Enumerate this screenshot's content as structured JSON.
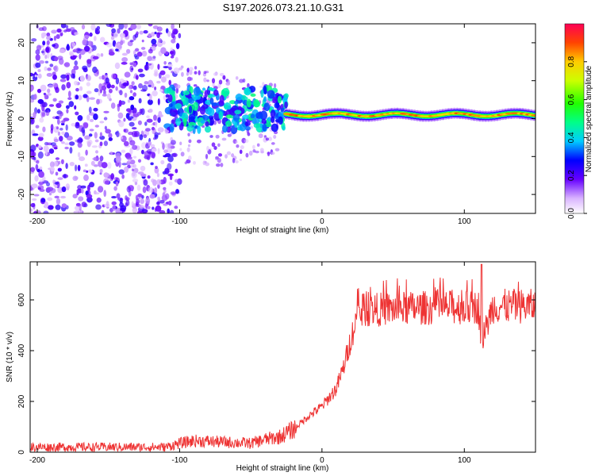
{
  "title": "S197.2026.073.21.10.G31",
  "chart_data": [
    {
      "type": "heatmap",
      "xlabel": "Height of straight line (km)",
      "ylabel": "Frequency (Hz)",
      "xlim": [
        -205,
        150
      ],
      "ylim": [
        -25,
        25
      ],
      "xticks": [
        -200,
        -100,
        0,
        100
      ],
      "yticks": [
        -20,
        -10,
        0,
        10,
        20
      ],
      "regions": [
        {
          "name": "noise",
          "x_range": [
            -205,
            -100
          ],
          "y_range": [
            -25,
            25
          ],
          "amplitude": [
            0.05,
            0.25
          ]
        },
        {
          "name": "scatter",
          "x_range": [
            -100,
            -30
          ],
          "y_range": [
            -15,
            15
          ],
          "amplitude": [
            0.05,
            0.2
          ]
        },
        {
          "name": "ridge-start",
          "x_range": [
            -110,
            -25
          ],
          "y_range": [
            -3,
            8
          ],
          "amplitude": [
            0.2,
            0.5
          ]
        },
        {
          "name": "ridge",
          "x_range": [
            -25,
            150
          ],
          "y_center": 1,
          "amplitude": [
            0.6,
            0.95
          ]
        }
      ],
      "colorbar": {
        "label": "Normalized spectral amplitude",
        "range": [
          0,
          1
        ],
        "ticks": [
          "0.0",
          "0.2",
          "0.4",
          "0.6",
          "0.8"
        ]
      }
    },
    {
      "type": "line",
      "xlabel": "Height of straight line (km)",
      "ylabel": "SNR (10 * v/v)",
      "xlim": [
        -205,
        150
      ],
      "ylim": [
        0,
        750
      ],
      "xticks": [
        -200,
        -100,
        0,
        100
      ],
      "yticks": [
        0,
        200,
        400,
        600
      ],
      "color": "#ee3333",
      "series": [
        {
          "name": "SNR",
          "x": [
            -205,
            -150,
            -110,
            -100,
            -90,
            -70,
            -50,
            -40,
            -30,
            -20,
            -10,
            0,
            10,
            15,
            20,
            25,
            30,
            50,
            80,
            110,
            112,
            120,
            150
          ],
          "y": [
            20,
            20,
            20,
            35,
            45,
            40,
            35,
            50,
            60,
            90,
            140,
            180,
            250,
            330,
            440,
            540,
            560,
            565,
            570,
            570,
            430,
            575,
            575
          ]
        }
      ]
    }
  ]
}
